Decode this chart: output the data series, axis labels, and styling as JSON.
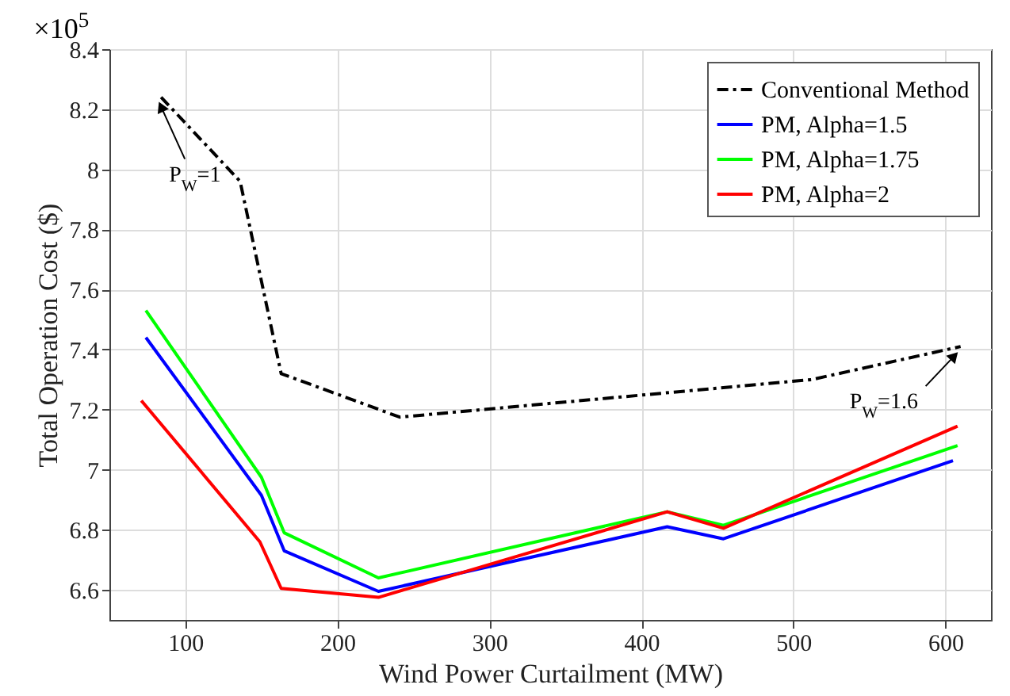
{
  "chart_data": {
    "type": "line",
    "xlabel": "Wind Power Curtailment (MW)",
    "ylabel": "Total Operation Cost ($)",
    "xlim": [
      50,
      630
    ],
    "ylim": [
      6.5,
      8.4
    ],
    "xticks": [
      100,
      200,
      300,
      400,
      500,
      600
    ],
    "yticks": [
      6.6,
      6.8,
      7,
      7.2,
      7.4,
      7.6,
      7.8,
      8,
      8.2,
      8.4
    ],
    "grid": true,
    "legend": "top right",
    "series": [
      {
        "name": "Conventional Method",
        "color": "#000000",
        "line_style": "dashed",
        "x": [
          84,
          136,
          163,
          241,
          512,
          610
        ],
        "values": [
          8.24,
          7.96,
          7.32,
          7.175,
          7.3,
          7.41
        ]
      },
      {
        "name": "PM, Alpha=1.5",
        "color": "#0000ff",
        "line_style": "solid",
        "x": [
          74,
          150,
          165,
          227,
          417,
          454,
          605
        ],
        "values": [
          7.44,
          6.915,
          6.73,
          6.595,
          6.81,
          6.77,
          7.03
        ]
      },
      {
        "name": "PM, Alpha=1.75",
        "color": "#00ff00",
        "line_style": "solid",
        "x": [
          74,
          150,
          165,
          227,
          417,
          454,
          608
        ],
        "values": [
          7.53,
          6.975,
          6.79,
          6.64,
          6.86,
          6.815,
          7.08
        ]
      },
      {
        "name": "PM, Alpha=2",
        "color": "#ff0000",
        "line_style": "solid",
        "x": [
          71,
          149,
          163,
          227,
          417,
          454,
          608
        ],
        "values": [
          7.23,
          6.76,
          6.605,
          6.575,
          6.86,
          6.805,
          7.145
        ]
      }
    ],
    "annotations": [
      "×10$^{5}$",
      {
        "text": "P$_{W}$=1",
        "x": 84,
        "y": 8.24
      },
      {
        "text": "P$_{W}$=1.6",
        "x": 610,
        "y": 7.41
      }
    ]
  }
}
